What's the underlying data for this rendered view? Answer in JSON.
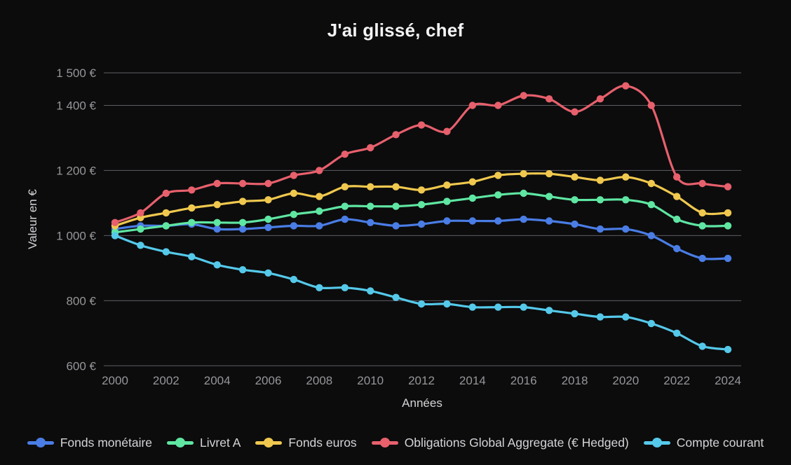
{
  "title": "J'ai glissé, chef",
  "colors": {
    "background": "#0c0c0d",
    "title_text": "#f4f4f6",
    "grid": "#5f5f64",
    "tick_text": "#96969a",
    "axis_label_text": "#d4d4d8",
    "legend_text": "#d4d4d8"
  },
  "chart_data": {
    "type": "line",
    "title": "J'ai glissé, chef",
    "xlabel": "Années",
    "ylabel": "Valeur en €",
    "grid": true,
    "legend_position": "bottom",
    "point_style": "circle",
    "x": [
      2000,
      2001,
      2002,
      2003,
      2004,
      2005,
      2006,
      2007,
      2008,
      2009,
      2010,
      2011,
      2012,
      2013,
      2014,
      2015,
      2016,
      2017,
      2018,
      2019,
      2020,
      2021,
      2022,
      2023,
      2024
    ],
    "x_tick_labels": [
      "2000",
      "2002",
      "2004",
      "2006",
      "2008",
      "2010",
      "2012",
      "2014",
      "2016",
      "2018",
      "2020",
      "2022",
      "2024"
    ],
    "x_tick_years": [
      2000,
      2002,
      2004,
      2006,
      2008,
      2010,
      2012,
      2014,
      2016,
      2018,
      2020,
      2022,
      2024
    ],
    "ylim": [
      600,
      1500
    ],
    "y_ticks": [
      600,
      800,
      1000,
      1200,
      1400,
      1500
    ],
    "y_tick_labels": [
      "600 €",
      "800 €",
      "1 000 €",
      "1 200 €",
      "1 400 €",
      "1 500 €"
    ],
    "series": [
      {
        "name": "Fonds monétaire",
        "color": "#4a7de5",
        "values": [
          1020,
          1030,
          1030,
          1035,
          1020,
          1020,
          1025,
          1030,
          1030,
          1050,
          1040,
          1030,
          1035,
          1045,
          1045,
          1045,
          1050,
          1045,
          1035,
          1020,
          1020,
          1000,
          960,
          930,
          930
        ]
      },
      {
        "name": "Livret A",
        "color": "#5fe6a2",
        "values": [
          1010,
          1020,
          1030,
          1040,
          1040,
          1040,
          1050,
          1065,
          1075,
          1090,
          1090,
          1090,
          1095,
          1105,
          1115,
          1125,
          1130,
          1120,
          1110,
          1110,
          1110,
          1095,
          1050,
          1030,
          1030
        ]
      },
      {
        "name": "Fonds euros",
        "color": "#f0c84e",
        "values": [
          1030,
          1055,
          1070,
          1085,
          1095,
          1105,
          1110,
          1130,
          1120,
          1150,
          1150,
          1150,
          1140,
          1155,
          1165,
          1185,
          1190,
          1190,
          1180,
          1170,
          1180,
          1160,
          1120,
          1070,
          1070
        ]
      },
      {
        "name": "Obligations Global Aggregate (€ Hedged)",
        "color": "#e7606c",
        "values": [
          1040,
          1070,
          1130,
          1140,
          1160,
          1160,
          1160,
          1185,
          1200,
          1250,
          1270,
          1310,
          1340,
          1320,
          1400,
          1400,
          1430,
          1420,
          1380,
          1420,
          1460,
          1400,
          1180,
          1160,
          1150
        ]
      },
      {
        "name": "Compte courant",
        "color": "#55c9ea",
        "values": [
          1000,
          970,
          950,
          935,
          910,
          895,
          885,
          865,
          840,
          840,
          830,
          810,
          790,
          790,
          780,
          780,
          780,
          770,
          760,
          750,
          750,
          730,
          700,
          660,
          650
        ]
      }
    ]
  }
}
